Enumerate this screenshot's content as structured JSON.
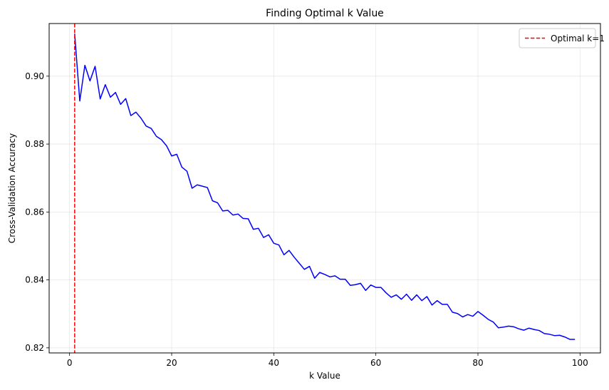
{
  "chart_data": {
    "type": "line",
    "title": "Finding Optimal k Value",
    "xlabel": "k Value",
    "ylabel": "Cross-Validation Accuracy",
    "xlim": [
      -4,
      104
    ],
    "ylim": [
      0.8185,
      0.9155
    ],
    "grid": true,
    "legend_position": "top-right",
    "x_ticks": [
      0,
      20,
      40,
      60,
      80,
      100
    ],
    "x_tick_labels": [
      "0",
      "20",
      "40",
      "60",
      "80",
      "100"
    ],
    "y_ticks": [
      0.82,
      0.84,
      0.86,
      0.88,
      0.9
    ],
    "y_tick_labels": [
      "0.82",
      "0.84",
      "0.86",
      "0.88",
      "0.90"
    ],
    "series": [
      {
        "color": "#0000ff",
        "x": [
          1,
          2,
          3,
          4,
          5,
          6,
          7,
          8,
          9,
          10,
          11,
          12,
          13,
          14,
          15,
          16,
          17,
          18,
          19,
          20,
          21,
          22,
          23,
          24,
          25,
          26,
          27,
          28,
          29,
          30,
          31,
          32,
          33,
          34,
          35,
          36,
          37,
          38,
          39,
          40,
          41,
          42,
          43,
          44,
          45,
          46,
          47,
          48,
          49,
          50,
          51,
          52,
          53,
          54,
          55,
          56,
          57,
          58,
          59,
          60,
          61,
          62,
          63,
          64,
          65,
          66,
          67,
          68,
          69,
          70,
          71,
          72,
          73,
          74,
          75,
          76,
          77,
          78,
          79,
          80,
          81,
          82,
          83,
          84,
          85,
          86,
          87,
          88,
          89,
          90,
          91,
          92,
          93,
          94,
          95,
          96,
          97,
          98,
          99
        ],
        "values": [
          0.9125,
          0.8927,
          0.9032,
          0.8986,
          0.9029,
          0.8933,
          0.8975,
          0.8938,
          0.8952,
          0.8917,
          0.8934,
          0.8884,
          0.8894,
          0.8876,
          0.8853,
          0.8846,
          0.8823,
          0.8813,
          0.8795,
          0.8765,
          0.877,
          0.8732,
          0.872,
          0.867,
          0.868,
          0.8676,
          0.8672,
          0.8633,
          0.8627,
          0.8603,
          0.8605,
          0.8591,
          0.8594,
          0.8581,
          0.858,
          0.8549,
          0.8552,
          0.8525,
          0.8533,
          0.8508,
          0.8503,
          0.8474,
          0.8487,
          0.8467,
          0.8449,
          0.8431,
          0.844,
          0.8405,
          0.8422,
          0.8416,
          0.8409,
          0.8412,
          0.8402,
          0.8402,
          0.8384,
          0.8386,
          0.839,
          0.8369,
          0.8385,
          0.8378,
          0.8378,
          0.8362,
          0.8349,
          0.8356,
          0.8343,
          0.8358,
          0.834,
          0.8356,
          0.8339,
          0.8351,
          0.8326,
          0.8339,
          0.8328,
          0.8328,
          0.8305,
          0.8301,
          0.8291,
          0.8298,
          0.8293,
          0.8307,
          0.8296,
          0.8284,
          0.8276,
          0.8259,
          0.8261,
          0.8264,
          0.8262,
          0.8256,
          0.8252,
          0.8258,
          0.8254,
          0.8251,
          0.8242,
          0.824,
          0.8236,
          0.8237,
          0.8232,
          0.8225,
          0.8225
        ]
      }
    ],
    "vlines": [
      {
        "x": 1,
        "color": "#ff0000",
        "style": "dashed",
        "label": "Optimal k=1"
      }
    ]
  }
}
